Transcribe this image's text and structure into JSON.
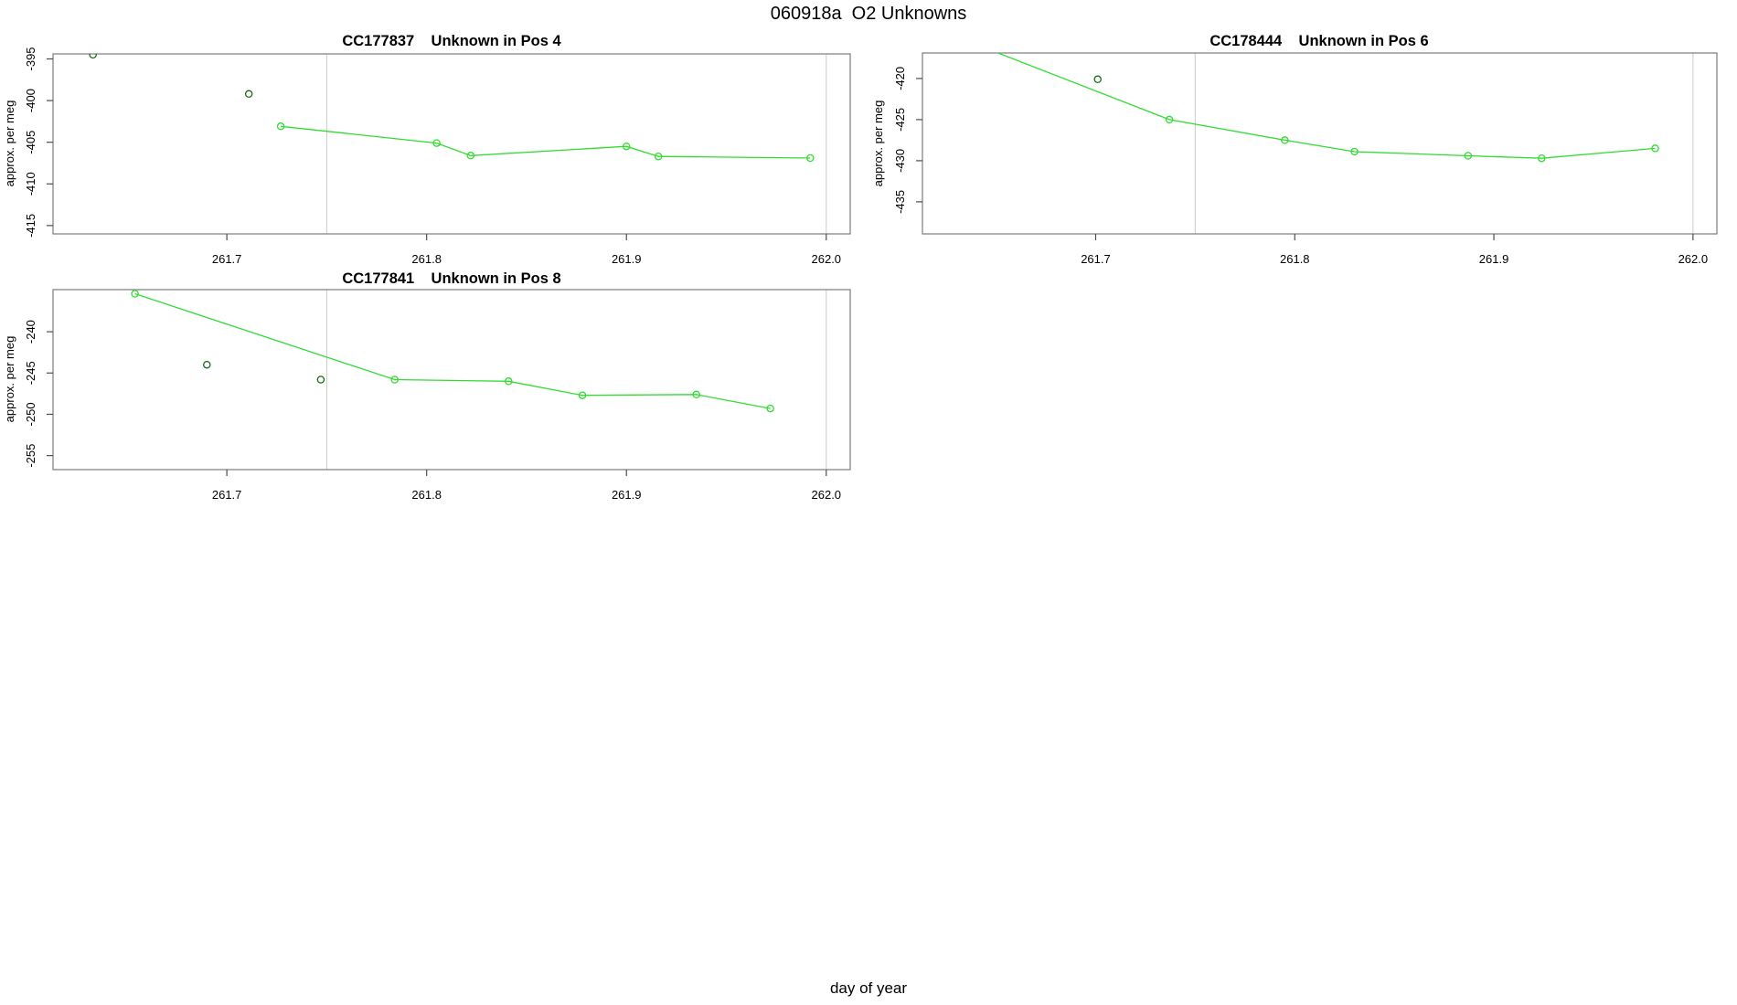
{
  "main_title": "060918a  O2 Unknowns",
  "xlabel": "day of year",
  "colors": {
    "line": "#32DC32",
    "isolated": "#1A6B1A",
    "box": "#858585",
    "grid": "#CFCFCF",
    "tick": "#4D4D4D",
    "text": "#000000"
  },
  "chart_data": [
    {
      "type": "line",
      "title": "CC177837    Unknown in Pos 4",
      "ylabel": "approx. per meg",
      "xlabel": "day of year",
      "xlim": [
        261.613,
        262.012
      ],
      "ylim": [
        -416.0,
        -394.4
      ],
      "x_ticks": [
        261.7,
        261.8,
        261.9,
        262.0
      ],
      "x_tick_labels": [
        "261.7",
        "261.8",
        "261.9",
        "262.0"
      ],
      "y_ticks": [
        -395,
        -400,
        -405,
        -410,
        -415
      ],
      "y_tick_labels": [
        "-395",
        "-400",
        "-405",
        "-410",
        "-415"
      ],
      "vlines": [
        261.75,
        262.0
      ],
      "grid": "vertical-reference-lines-only",
      "legend": "none",
      "series": [
        {
          "name": "connected-run",
          "style": "line+marker",
          "color_key": "line",
          "x": [
            261.727,
            261.805,
            261.822,
            261.9,
            261.916,
            261.992
          ],
          "y": [
            -403.1,
            -405.1,
            -406.6,
            -405.5,
            -406.7,
            -406.9
          ]
        },
        {
          "name": "isolated-points",
          "style": "marker",
          "color_key": "isolated",
          "x": [
            261.633,
            261.711
          ],
          "y": [
            -394.5,
            -399.2
          ]
        }
      ]
    },
    {
      "type": "line",
      "title": "CC178444    Unknown in Pos 6",
      "ylabel": "approx. per meg",
      "xlabel": "day of year",
      "xlim": [
        261.613,
        262.012
      ],
      "ylim": [
        -438.9,
        -416.9
      ],
      "x_ticks": [
        261.7,
        261.8,
        261.9,
        262.0
      ],
      "x_tick_labels": [
        "261.7",
        "261.8",
        "261.9",
        "262.0"
      ],
      "y_ticks": [
        -420,
        -425,
        -430,
        -435
      ],
      "y_tick_labels": [
        "-420",
        "-425",
        "-430",
        "-435"
      ],
      "vlines": [
        261.75,
        262.0
      ],
      "grid": "vertical-reference-lines-only",
      "legend": "none",
      "note": "first line vertex lies above the plotted y-range; segment enters clipped through the top edge",
      "series": [
        {
          "name": "connected-run",
          "style": "line+marker",
          "color_key": "line",
          "x": [
            261.634,
            261.737,
            261.795,
            261.83,
            261.887,
            261.924,
            261.981
          ],
          "y": [
            -415.3,
            -425.0,
            -427.5,
            -428.9,
            -429.4,
            -429.7,
            -428.5
          ]
        },
        {
          "name": "isolated-points",
          "style": "marker",
          "color_key": "isolated",
          "x": [
            261.701
          ],
          "y": [
            -420.1
          ]
        }
      ]
    },
    {
      "type": "line",
      "title": "CC177841    Unknown in Pos 8",
      "ylabel": "approx. per meg",
      "xlabel": "day of year",
      "xlim": [
        261.613,
        262.012
      ],
      "ylim": [
        -256.7,
        -234.9
      ],
      "x_ticks": [
        261.7,
        261.8,
        261.9,
        262.0
      ],
      "x_tick_labels": [
        "261.7",
        "261.8",
        "261.9",
        "262.0"
      ],
      "y_ticks": [
        -240,
        -245,
        -250,
        -255
      ],
      "y_tick_labels": [
        "-240",
        "-245",
        "-250",
        "-255"
      ],
      "vlines": [
        261.75,
        262.0
      ],
      "grid": "vertical-reference-lines-only",
      "legend": "none",
      "series": [
        {
          "name": "connected-run",
          "style": "line+marker",
          "color_key": "line",
          "x": [
            261.654,
            261.784,
            261.841,
            261.878,
            261.935,
            261.972
          ],
          "y": [
            -235.4,
            -245.8,
            -246.0,
            -247.7,
            -247.6,
            -249.3
          ]
        },
        {
          "name": "isolated-points",
          "style": "marker",
          "color_key": "isolated",
          "x": [
            261.69,
            261.747
          ],
          "y": [
            -244.0,
            -245.8
          ]
        }
      ]
    }
  ]
}
